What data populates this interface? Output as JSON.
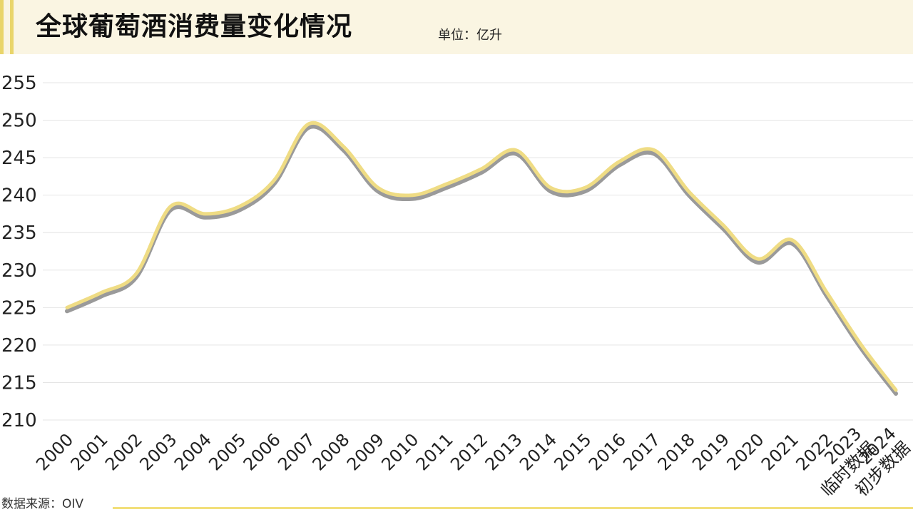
{
  "header": {
    "title": "全球葡萄酒消费量变化情况",
    "unit": "单位：亿升"
  },
  "footer": {
    "source": "数据来源：OIV"
  },
  "colors": {
    "line": "#efdc84",
    "shadow": "#9a9a9a",
    "accent": "#e9d56a",
    "grid": "#e4e4e4"
  },
  "chart_data": {
    "type": "line",
    "categories": [
      "2000",
      "2001",
      "2002",
      "2003",
      "2004",
      "2005",
      "2006",
      "2007",
      "2008",
      "2009",
      "2010",
      "2011",
      "2012",
      "2013",
      "2014",
      "2015",
      "2016",
      "2017",
      "2018",
      "2019",
      "2020",
      "2021",
      "2022",
      "2023\n临时数据",
      "2024\n初步数据"
    ],
    "series": [
      {
        "values": [
          225,
          227,
          229.5,
          238.5,
          237.5,
          238.5,
          242,
          249.5,
          246.5,
          241,
          240,
          241.5,
          243.5,
          246,
          241,
          241,
          244.5,
          246,
          240.5,
          236,
          231.5,
          234,
          227,
          220,
          214
        ]
      }
    ],
    "yticks": [
      210,
      215,
      220,
      225,
      230,
      235,
      240,
      245,
      250,
      255
    ],
    "ylim": [
      210,
      255
    ],
    "grid": true,
    "legend": "none"
  }
}
